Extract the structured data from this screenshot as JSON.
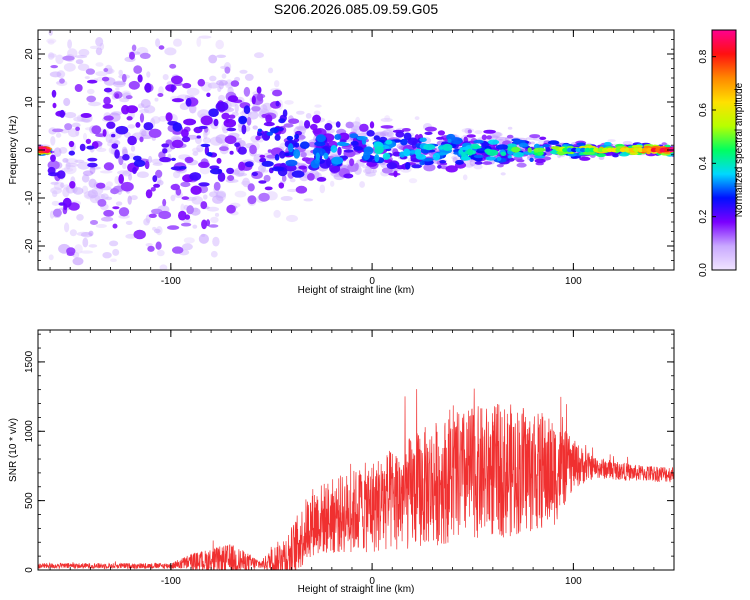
{
  "figure": {
    "title": "S206.2026.085.09.59.G05"
  },
  "chart_data": [
    {
      "type": "heatmap",
      "xlabel": "Height of straight line (km)",
      "ylabel": "Frequency (Hz)",
      "xlim": [
        -166,
        150
      ],
      "ylim": [
        -25,
        25
      ],
      "x_ticks": [
        -100,
        0,
        100
      ],
      "y_ticks": [
        -20,
        -10,
        0,
        10,
        20
      ],
      "colorbar": {
        "label": "Normalized spectral amplitude",
        "range": [
          0,
          0.9
        ],
        "ticks": [
          0.0,
          0.2,
          0.4,
          0.6,
          0.8
        ],
        "tick_labels": [
          "0.0",
          "0.2",
          "0.4",
          "0.6",
          "0.8"
        ],
        "colors": [
          "#f0e4ff",
          "#c9a9ff",
          "#7a00ff",
          "#0010ff",
          "#00d8ff",
          "#00ff60",
          "#b8ff00",
          "#ffe000",
          "#ff8800",
          "#ff1010",
          "#ff0090"
        ]
      },
      "band_profile": [
        {
          "x": -160,
          "center": 0,
          "spread": 25,
          "peak": 0.2
        },
        {
          "x": -100,
          "center": 0,
          "spread": 22,
          "peak": 0.22
        },
        {
          "x": -60,
          "center": 2,
          "spread": 14,
          "peak": 0.25
        },
        {
          "x": -30,
          "center": -1,
          "spread": 8,
          "peak": 0.3
        },
        {
          "x": 0,
          "center": 0,
          "spread": 5,
          "peak": 0.35
        },
        {
          "x": 40,
          "center": 0,
          "spread": 4,
          "peak": 0.35
        },
        {
          "x": 95,
          "center": 0,
          "spread": 1.5,
          "peak": 0.5
        },
        {
          "x": 150,
          "center": 0,
          "spread": 0.8,
          "peak": 0.85
        }
      ]
    },
    {
      "type": "line",
      "xlabel": "Height of straight line (km)",
      "ylabel": "SNR (10 * v/v)",
      "xlim": [
        -166,
        150
      ],
      "ylim": [
        0,
        1730
      ],
      "x_ticks": [
        -100,
        0,
        100
      ],
      "y_ticks": [
        0,
        500,
        1000,
        1500
      ],
      "series": [
        {
          "color": "#f03030",
          "envelope": [
            {
              "x": -166,
              "mean": 30,
              "amp": 20
            },
            {
              "x": -100,
              "mean": 30,
              "amp": 20
            },
            {
              "x": -90,
              "mean": 60,
              "amp": 60
            },
            {
              "x": -70,
              "mean": 70,
              "amp": 120
            },
            {
              "x": -55,
              "mean": 40,
              "amp": 30
            },
            {
              "x": -40,
              "mean": 120,
              "amp": 200
            },
            {
              "x": -30,
              "mean": 350,
              "amp": 250
            },
            {
              "x": -10,
              "mean": 420,
              "amp": 300
            },
            {
              "x": 10,
              "mean": 500,
              "amp": 380
            },
            {
              "x": 30,
              "mean": 620,
              "amp": 450
            },
            {
              "x": 50,
              "mean": 700,
              "amp": 480
            },
            {
              "x": 70,
              "mean": 720,
              "amp": 480
            },
            {
              "x": 90,
              "mean": 700,
              "amp": 400
            },
            {
              "x": 100,
              "mean": 760,
              "amp": 180
            },
            {
              "x": 110,
              "mean": 740,
              "amp": 80
            },
            {
              "x": 130,
              "mean": 700,
              "amp": 60
            },
            {
              "x": 150,
              "mean": 690,
              "amp": 60
            }
          ]
        }
      ]
    }
  ]
}
